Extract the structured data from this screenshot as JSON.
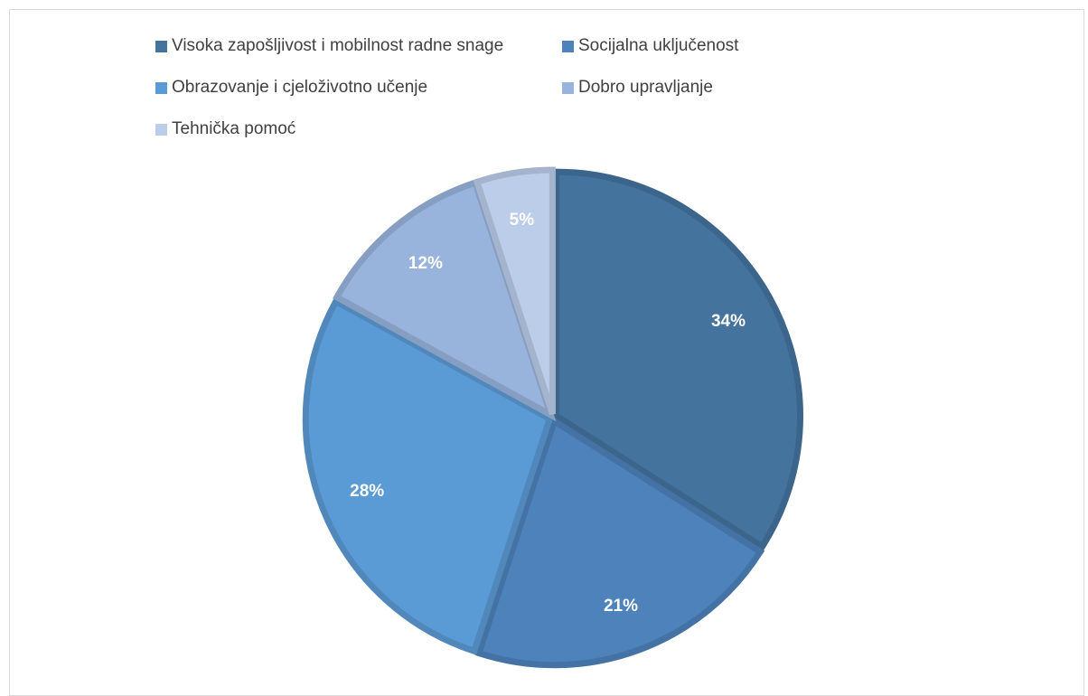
{
  "chart_data": {
    "type": "pie",
    "title": "",
    "legend_position": "top",
    "slices": [
      {
        "label": "Visoka zapošljivost i mobilnost radne snage",
        "value": 34,
        "value_label": "34%",
        "color": "#44739e"
      },
      {
        "label": "Socijalna uključenost",
        "value": 21,
        "value_label": "21%",
        "color": "#4d82bb"
      },
      {
        "label": "Obrazovanje i cjeloživotno učenje",
        "value": 28,
        "value_label": "28%",
        "color": "#5b9bd5"
      },
      {
        "label": "Dobro upravljanje",
        "value": 12,
        "value_label": "12%",
        "color": "#98b4dc"
      },
      {
        "label": "Tehnička pomoć",
        "value": 5,
        "value_label": "5%",
        "color": "#bccde9"
      }
    ]
  }
}
